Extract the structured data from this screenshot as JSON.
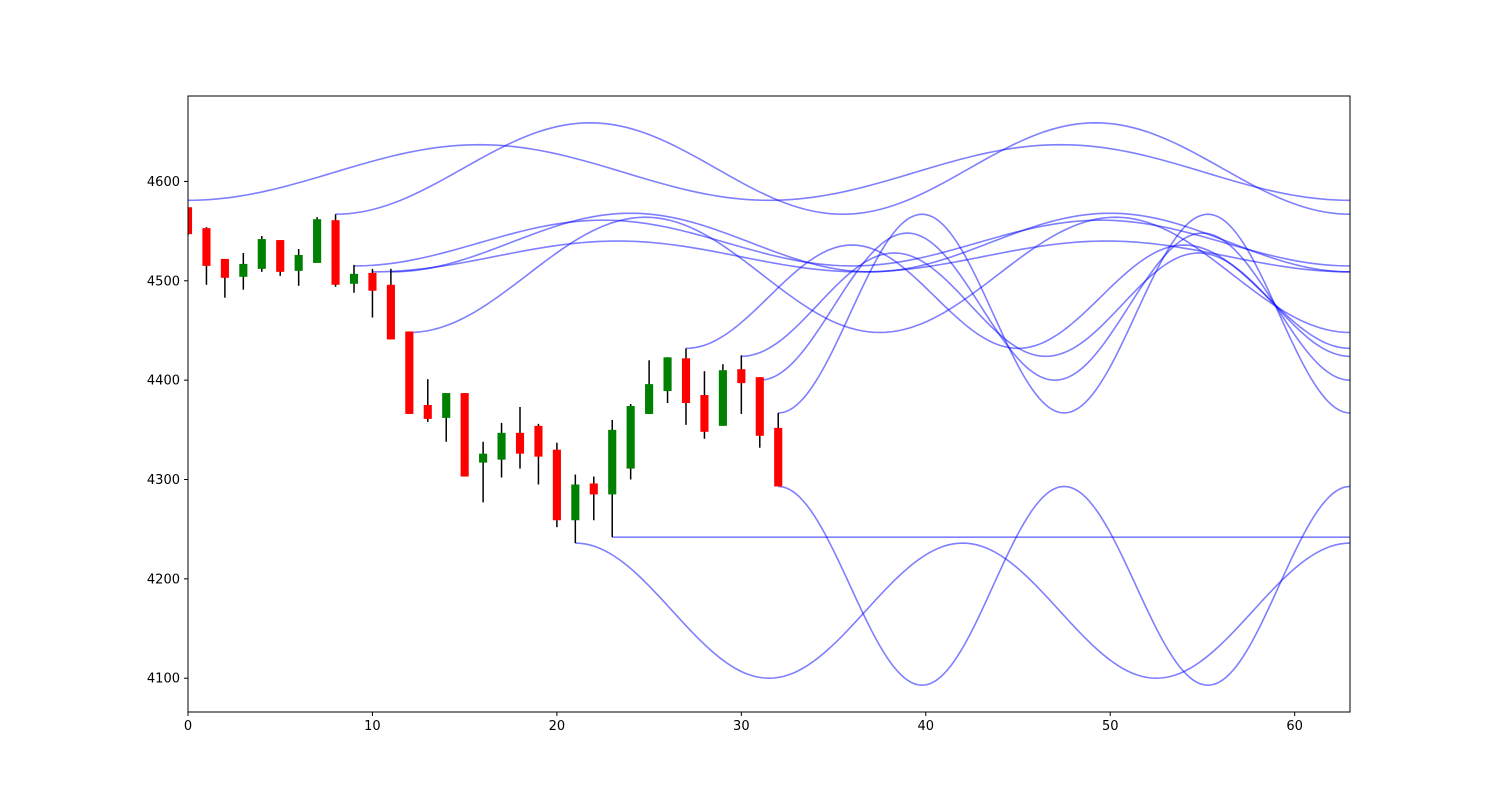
{
  "chart_data": {
    "type": "candlestick",
    "title": "",
    "xlabel": "",
    "ylabel": "",
    "xlim": [
      0,
      63
    ],
    "ylim": [
      4066,
      4686
    ],
    "grid": false,
    "xticks": [
      0,
      10,
      20,
      30,
      40,
      50,
      60
    ],
    "yticks": [
      4100,
      4200,
      4300,
      4400,
      4500,
      4600
    ],
    "colors": {
      "up": "#008000",
      "down": "#ff0000",
      "wick": "#000000",
      "curves": "#0000ff"
    },
    "candles": [
      {
        "x": 0,
        "open": 4574,
        "high": 4574,
        "low": 4546,
        "close": 4547
      },
      {
        "x": 1,
        "open": 4553,
        "high": 4554,
        "low": 4496,
        "close": 4515
      },
      {
        "x": 2,
        "open": 4522,
        "high": 4522,
        "low": 4483,
        "close": 4503
      },
      {
        "x": 3,
        "open": 4504,
        "high": 4528,
        "low": 4491,
        "close": 4517
      },
      {
        "x": 4,
        "open": 4512,
        "high": 4545,
        "low": 4509,
        "close": 4542
      },
      {
        "x": 5,
        "open": 4541,
        "high": 4541,
        "low": 4505,
        "close": 4509
      },
      {
        "x": 6,
        "open": 4510,
        "high": 4532,
        "low": 4495,
        "close": 4526
      },
      {
        "x": 7,
        "open": 4518,
        "high": 4564,
        "low": 4518,
        "close": 4562
      },
      {
        "x": 8,
        "open": 4561,
        "high": 4567,
        "low": 4494,
        "close": 4496
      },
      {
        "x": 9,
        "open": 4497,
        "high": 4516,
        "low": 4488,
        "close": 4507
      },
      {
        "x": 10,
        "open": 4508,
        "high": 4512,
        "low": 4463,
        "close": 4490
      },
      {
        "x": 11,
        "open": 4496,
        "high": 4512,
        "low": 4441,
        "close": 4441
      },
      {
        "x": 12,
        "open": 4449,
        "high": 4449,
        "low": 4366,
        "close": 4366
      },
      {
        "x": 13,
        "open": 4375,
        "high": 4401,
        "low": 4358,
        "close": 4361
      },
      {
        "x": 14,
        "open": 4362,
        "high": 4387,
        "low": 4338,
        "close": 4387
      },
      {
        "x": 15,
        "open": 4387,
        "high": 4387,
        "low": 4303,
        "close": 4303
      },
      {
        "x": 16,
        "open": 4317,
        "high": 4338,
        "low": 4277,
        "close": 4326
      },
      {
        "x": 17,
        "open": 4320,
        "high": 4357,
        "low": 4302,
        "close": 4347
      },
      {
        "x": 18,
        "open": 4347,
        "high": 4373,
        "low": 4311,
        "close": 4326
      },
      {
        "x": 19,
        "open": 4354,
        "high": 4356,
        "low": 4295,
        "close": 4323
      },
      {
        "x": 20,
        "open": 4330,
        "high": 4337,
        "low": 4252,
        "close": 4259
      },
      {
        "x": 21,
        "open": 4259,
        "high": 4305,
        "low": 4236,
        "close": 4295
      },
      {
        "x": 22,
        "open": 4296,
        "high": 4303,
        "low": 4259,
        "close": 4285
      },
      {
        "x": 23,
        "open": 4285,
        "high": 4360,
        "low": 4242,
        "close": 4350
      },
      {
        "x": 24,
        "open": 4311,
        "high": 4376,
        "low": 4300,
        "close": 4374
      },
      {
        "x": 25,
        "open": 4366,
        "high": 4420,
        "low": 4366,
        "close": 4396
      },
      {
        "x": 26,
        "open": 4389,
        "high": 4423,
        "low": 4377,
        "close": 4423
      },
      {
        "x": 27,
        "open": 4422,
        "high": 4432,
        "low": 4355,
        "close": 4377
      },
      {
        "x": 28,
        "open": 4385,
        "high": 4409,
        "low": 4341,
        "close": 4348
      },
      {
        "x": 29,
        "open": 4354,
        "high": 4416,
        "low": 4354,
        "close": 4410
      },
      {
        "x": 30,
        "open": 4411,
        "high": 4425,
        "low": 4366,
        "close": 4397
      },
      {
        "x": 31,
        "open": 4403,
        "high": 4403,
        "low": 4332,
        "close": 4344
      },
      {
        "x": 32,
        "open": 4352,
        "high": 4367,
        "low": 4293,
        "close": 4293
      }
    ],
    "series": [
      {
        "x": [
          0,
          15.8,
          31.5,
          47.3,
          63
        ],
        "values": [
          4581,
          4637,
          4581,
          4637,
          4581
        ]
      },
      {
        "x": [
          8,
          21.8,
          35.5,
          49.2,
          63
        ],
        "values": [
          4567,
          4659,
          4567,
          4659,
          4567
        ]
      },
      {
        "x": [
          9,
          22.5,
          36,
          49.5,
          63
        ],
        "values": [
          4515,
          4561,
          4515,
          4561,
          4515
        ]
      },
      {
        "x": [
          10,
          23.3,
          36.5,
          49.8,
          63
        ],
        "values": [
          4509,
          4540,
          4509,
          4540,
          4509
        ]
      },
      {
        "x": [
          11,
          24,
          37,
          50,
          63
        ],
        "values": [
          4509,
          4568,
          4509,
          4568,
          4509
        ]
      },
      {
        "x": [
          12,
          24.8,
          37.5,
          50.3,
          63
        ],
        "values": [
          4448,
          4564,
          4448,
          4564,
          4448
        ]
      },
      {
        "x": [
          21,
          31.5,
          42,
          52.5,
          63
        ],
        "values": [
          4236,
          4100,
          4236,
          4100,
          4236
        ]
      },
      {
        "x": [
          23,
          63
        ],
        "values": [
          4242,
          4242
        ]
      },
      {
        "x": [
          27,
          36,
          45,
          54,
          63
        ],
        "values": [
          4432,
          4536,
          4432,
          4536,
          4432
        ]
      },
      {
        "x": [
          30,
          38.3,
          46.5,
          54.8,
          63
        ],
        "values": [
          4424,
          4528,
          4424,
          4528,
          4424
        ]
      },
      {
        "x": [
          31,
          39,
          47,
          55,
          63
        ],
        "values": [
          4400,
          4548,
          4400,
          4548,
          4400
        ]
      },
      {
        "x": [
          32,
          39.8,
          47.5,
          55.3,
          63
        ],
        "values": [
          4367,
          4567,
          4367,
          4567,
          4367
        ]
      },
      {
        "x": [
          32,
          39.8,
          47.5,
          55.3,
          63
        ],
        "values": [
          4293,
          4093,
          4293,
          4093,
          4293
        ]
      }
    ]
  }
}
